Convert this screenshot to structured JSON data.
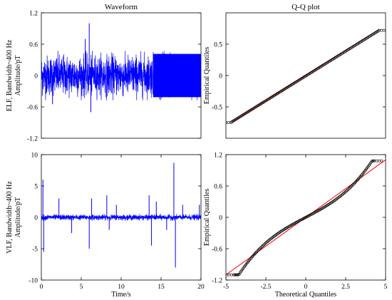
{
  "chart_data": [
    {
      "type": "line",
      "panel": "top-left",
      "title": "Waveform",
      "ylabel_lines": [
        "ELF, Bandwidth~400 Hz",
        "Amplitude/pT"
      ],
      "xlim": [
        0,
        20
      ],
      "ylim": [
        -1.2,
        1.2
      ],
      "yticks": [
        "-1.2",
        "-0.6",
        "0",
        "0.6",
        "1.2"
      ],
      "xticks": [],
      "series": [
        {
          "color": "#0000ff",
          "envelope": 0.45,
          "dense_after_s": 14,
          "spikes": [
            [
              6,
              1.0
            ],
            [
              6.2,
              -0.7
            ],
            [
              1.4,
              -0.55
            ],
            [
              5.5,
              0.7
            ]
          ]
        }
      ]
    },
    {
      "type": "scatter",
      "panel": "top-right",
      "title": "Q-Q plot",
      "ylabel": "Empirical Quantiles",
      "xlim": [
        -5,
        5
      ],
      "ylim": [
        -1,
        1
      ],
      "yticks": [
        "-0.5",
        "0",
        "0.5"
      ],
      "xticks": [],
      "reference_line": {
        "color": "#ff0000",
        "slope": 0.16,
        "x_range": [
          -4.6,
          4.6
        ]
      },
      "points": {
        "marker": "o",
        "shape": "linear",
        "x_range": [
          -4.7,
          4.6
        ],
        "y_range": [
          -0.75,
          0.72
        ]
      }
    },
    {
      "type": "line",
      "panel": "bottom-left",
      "ylabel_lines": [
        "VLF, Bandwidth~400 Hz",
        "Amplitude/pT"
      ],
      "xlabel": "Time/s",
      "xlim": [
        0,
        20
      ],
      "ylim": [
        -10,
        10
      ],
      "yticks": [
        "-10",
        "-5",
        "0",
        "5",
        "10"
      ],
      "xticks": [
        "0",
        "5",
        "10",
        "15",
        "20"
      ],
      "series": [
        {
          "color": "#0000ff",
          "envelope": 0.5,
          "spikes": [
            [
              0.2,
              6.0
            ],
            [
              0.3,
              -5.5
            ],
            [
              2.2,
              3.0
            ],
            [
              3.8,
              -2.5
            ],
            [
              6.0,
              -5.0
            ],
            [
              6.3,
              3.0
            ],
            [
              8.2,
              3.5
            ],
            [
              8.5,
              -2.0
            ],
            [
              9.4,
              2.0
            ],
            [
              13.5,
              3.5
            ],
            [
              13.8,
              -4.5
            ],
            [
              14.4,
              2.5
            ],
            [
              15.7,
              -2.0
            ],
            [
              16.6,
              8.7
            ],
            [
              16.8,
              -8.0
            ],
            [
              17.7,
              2.0
            ],
            [
              19.8,
              2.0
            ]
          ]
        }
      ]
    },
    {
      "type": "scatter",
      "panel": "bottom-right",
      "ylabel": "Empirical Quantiles",
      "xlabel": "Theoretical Quantiles",
      "xlim": [
        -5,
        5
      ],
      "ylim": [
        -1.2,
        1.2
      ],
      "yticks": [
        "-1.2",
        "-0.6",
        "0",
        "0.6",
        "1.2"
      ],
      "xticks": [
        "-5",
        "-2.5",
        "0",
        "2.5",
        "5"
      ],
      "reference_line": {
        "color": "#ff0000",
        "slope": 0.22,
        "x_range": [
          -5,
          5
        ]
      },
      "points": {
        "marker": "o",
        "shape": "s-curve",
        "x_range": [
          -4.5,
          4.3
        ],
        "y_range": [
          -1.1,
          1.08
        ]
      }
    }
  ]
}
